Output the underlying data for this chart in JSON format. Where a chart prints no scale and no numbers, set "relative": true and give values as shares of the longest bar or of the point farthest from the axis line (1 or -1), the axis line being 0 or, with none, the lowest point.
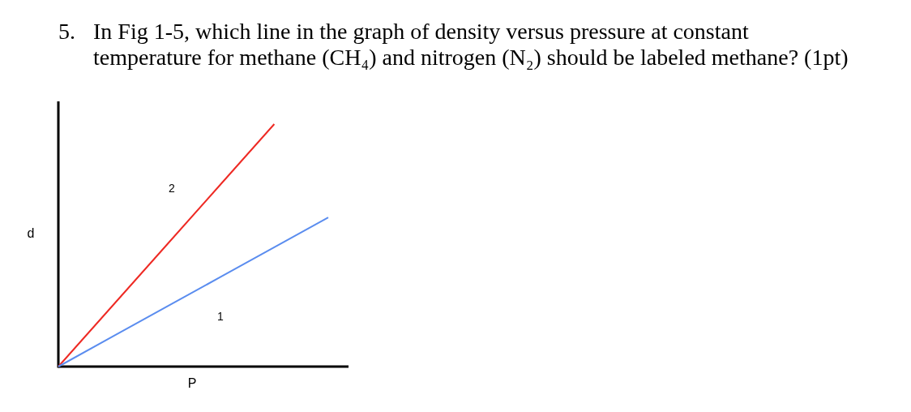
{
  "chart_data": {
    "type": "line",
    "title": "5. In Fig 1-5, which line in the graph of density versus pressure at constant temperature for methane (CH₄) and nitrogen (N₂) should be labeled methane? (1pt)",
    "xlabel": "P",
    "ylabel": "d",
    "relative": true,
    "categories": [
      null,
      null,
      null,
      null,
      null,
      null
    ],
    "series": [
      {
        "name": "2",
        "color": "#ee2a24",
        "values": [
          0,
          0.25,
          0.5,
          0.75,
          1,
          null
        ]
      },
      {
        "name": "1",
        "color": "#5b8def",
        "values": [
          0,
          0.123,
          0.246,
          0.369,
          0.492,
          0.615
        ]
      }
    ]
  }
}
